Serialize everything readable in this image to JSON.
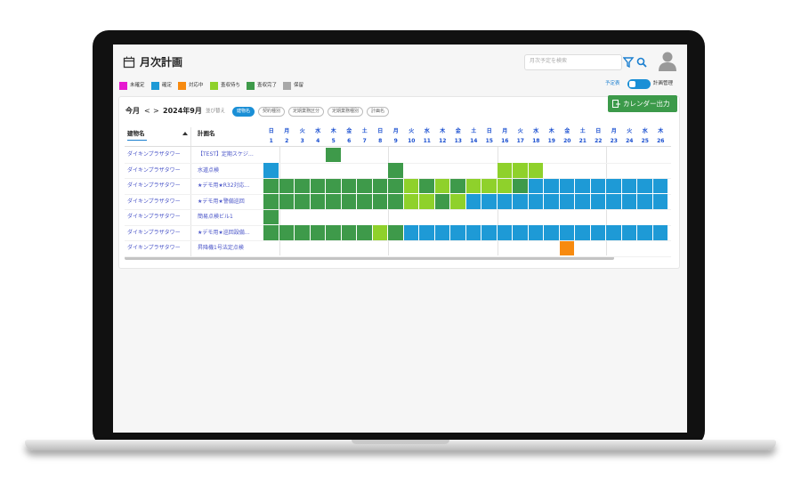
{
  "header": {
    "title": "月次計画",
    "search_placeholder": "月次予定を検索"
  },
  "legend": [
    {
      "label": "未確定",
      "color": "#e619d0"
    },
    {
      "label": "確定",
      "color": "#1e9ad6"
    },
    {
      "label": "対応中",
      "color": "#f78a0f"
    },
    {
      "label": "査収待ち",
      "color": "#8fd12b"
    },
    {
      "label": "査収完了",
      "color": "#3e9a4a"
    },
    {
      "label": "保留",
      "color": "#a8a8a8"
    }
  ],
  "toggle": {
    "left": "予定表",
    "right": "計画管理"
  },
  "export_button": "カレンダー出力",
  "nav": {
    "today": "今月",
    "prev": "<",
    "next": ">",
    "month": "2024年9月",
    "sort_label": "並び替え",
    "sort_chips": [
      "建物名",
      "契約種別",
      "定期業務区分",
      "定期業務種別",
      "計画名"
    ],
    "active_chip": 0
  },
  "table": {
    "columns": [
      "建物名",
      "計画名"
    ],
    "days": [
      {
        "weekday": "日",
        "date": "1"
      },
      {
        "weekday": "月",
        "date": "2"
      },
      {
        "weekday": "火",
        "date": "3"
      },
      {
        "weekday": "水",
        "date": "4"
      },
      {
        "weekday": "木",
        "date": "5"
      },
      {
        "weekday": "金",
        "date": "6"
      },
      {
        "weekday": "土",
        "date": "7"
      },
      {
        "weekday": "日",
        "date": "8"
      },
      {
        "weekday": "月",
        "date": "9"
      },
      {
        "weekday": "火",
        "date": "10"
      },
      {
        "weekday": "水",
        "date": "11"
      },
      {
        "weekday": "木",
        "date": "12"
      },
      {
        "weekday": "金",
        "date": "13"
      },
      {
        "weekday": "土",
        "date": "14"
      },
      {
        "weekday": "日",
        "date": "15"
      },
      {
        "weekday": "月",
        "date": "16"
      },
      {
        "weekday": "火",
        "date": "17"
      },
      {
        "weekday": "水",
        "date": "18"
      },
      {
        "weekday": "木",
        "date": "19"
      },
      {
        "weekday": "金",
        "date": "20"
      },
      {
        "weekday": "土",
        "date": "21"
      },
      {
        "weekday": "日",
        "date": "22"
      },
      {
        "weekday": "月",
        "date": "23"
      },
      {
        "weekday": "火",
        "date": "24"
      },
      {
        "weekday": "水",
        "date": "25"
      },
      {
        "weekday": "木",
        "date": "26"
      }
    ],
    "rows": [
      {
        "building": "ダイキンプラザタワー",
        "plan": "【TEST】定期スケジ…",
        "cells": [
          null,
          null,
          null,
          null,
          4,
          null,
          null,
          null,
          null,
          null,
          null,
          null,
          null,
          null,
          null,
          null,
          null,
          null,
          null,
          null,
          null,
          null,
          null,
          null,
          null,
          null
        ]
      },
      {
        "building": "ダイキンプラザタワー",
        "plan": "水道点検",
        "cells": [
          1,
          null,
          null,
          null,
          null,
          null,
          null,
          null,
          4,
          null,
          null,
          null,
          null,
          null,
          null,
          3,
          3,
          3,
          null,
          null,
          null,
          null,
          null,
          null,
          null,
          null
        ]
      },
      {
        "building": "ダイキンプラザタワー",
        "plan": "★デモ用★R32対応…",
        "cells": [
          4,
          4,
          4,
          4,
          4,
          4,
          4,
          4,
          4,
          3,
          4,
          3,
          4,
          3,
          3,
          3,
          4,
          1,
          1,
          1,
          1,
          1,
          1,
          1,
          1,
          1
        ]
      },
      {
        "building": "ダイキンプラザタワー",
        "plan": "★デモ用★警備巡回",
        "cells": [
          4,
          4,
          4,
          4,
          4,
          4,
          4,
          4,
          4,
          3,
          3,
          4,
          3,
          1,
          1,
          1,
          1,
          1,
          1,
          1,
          1,
          1,
          1,
          1,
          1,
          1
        ]
      },
      {
        "building": "ダイキンプラザタワー",
        "plan": "簡易点検ビル1",
        "cells": [
          4,
          null,
          null,
          null,
          null,
          null,
          null,
          null,
          null,
          null,
          null,
          null,
          null,
          null,
          null,
          null,
          null,
          null,
          null,
          null,
          null,
          null,
          null,
          null,
          null,
          null
        ]
      },
      {
        "building": "ダイキンプラザタワー",
        "plan": "★デモ用★巡回設備…",
        "cells": [
          4,
          4,
          4,
          4,
          4,
          4,
          4,
          3,
          4,
          1,
          1,
          1,
          1,
          1,
          1,
          1,
          1,
          1,
          1,
          1,
          1,
          1,
          1,
          1,
          1,
          1
        ]
      },
      {
        "building": "ダイキンプラザタワー",
        "plan": "昇降機1号法定点検",
        "cells": [
          null,
          null,
          null,
          null,
          null,
          null,
          null,
          null,
          null,
          null,
          null,
          null,
          null,
          null,
          null,
          null,
          null,
          null,
          null,
          2,
          null,
          null,
          null,
          null,
          null,
          null
        ]
      }
    ]
  }
}
